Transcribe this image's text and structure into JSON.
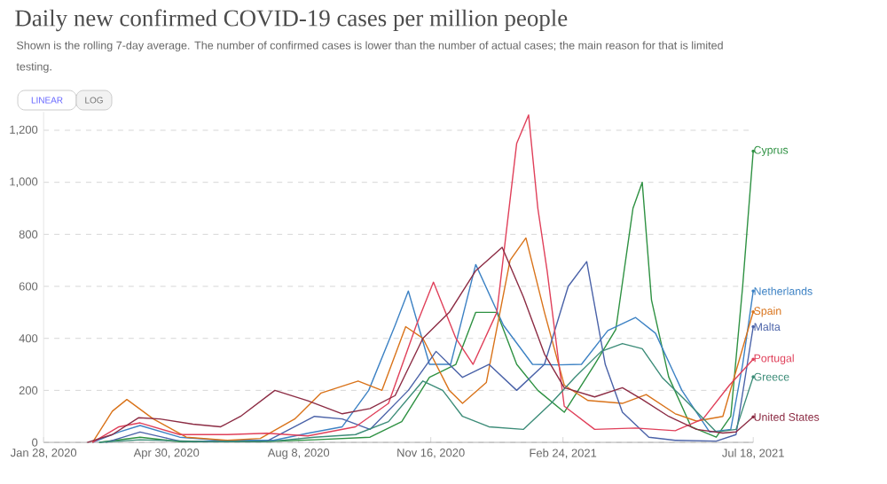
{
  "chart_data": {
    "type": "line",
    "title": "Daily new confirmed COVID-19 cases per million people",
    "subtitle": "Shown is the rolling 7-day average. The number of confirmed cases is lower than the number of actual cases; the main reason for that is limited testing.",
    "annotations": [
      "LINEAR",
      "LOG"
    ],
    "xlim": [
      "2020-01-28",
      "2021-07-18"
    ],
    "xticks": [
      {
        "value": "2020-01-28",
        "label": "Jan 28, 2020"
      },
      {
        "value": "2020-04-30",
        "label": "Apr 30, 2020"
      },
      {
        "value": "2020-08-08",
        "label": "Aug 8, 2020"
      },
      {
        "value": "2020-11-16",
        "label": "Nov 16, 2020"
      },
      {
        "value": "2021-02-24",
        "label": "Feb 24, 2021"
      },
      {
        "value": "2021-07-18",
        "label": "Jul 18, 2021"
      }
    ],
    "ylim": [
      0,
      1270
    ],
    "yticks": [
      0,
      200,
      400,
      600,
      800,
      {
        "value": 1000,
        "label": "1,000"
      },
      {
        "value": 1200,
        "label": "1,200"
      }
    ],
    "grid": "y",
    "legend": "right",
    "line_style": "solid",
    "series": [
      {
        "name": "Cyprus",
        "color": "#2e9142",
        "x": [
          "2020-03-10",
          "2020-04-10",
          "2020-05-10",
          "2020-07-10",
          "2020-08-20",
          "2020-10-01",
          "2020-10-25",
          "2020-11-15",
          "2020-12-05",
          "2020-12-20",
          "2021-01-05",
          "2021-01-20",
          "2021-02-05",
          "2021-02-25",
          "2021-03-20",
          "2021-04-05",
          "2021-04-18",
          "2021-04-25",
          "2021-05-02",
          "2021-05-15",
          "2021-06-01",
          "2021-06-20",
          "2021-07-01",
          "2021-07-10",
          "2021-07-18"
        ],
        "values": [
          0,
          20,
          3,
          3,
          10,
          20,
          80,
          250,
          300,
          500,
          500,
          300,
          200,
          116,
          300,
          434,
          900,
          1000,
          548,
          252,
          60,
          20,
          100,
          600,
          1120
        ]
      },
      {
        "name": "Netherlands",
        "color": "#3d82c4",
        "x": [
          "2020-03-05",
          "2020-03-25",
          "2020-04-10",
          "2020-05-10",
          "2020-06-10",
          "2020-07-20",
          "2020-08-15",
          "2020-09-10",
          "2020-09-30",
          "2020-10-20",
          "2020-10-30",
          "2020-11-15",
          "2020-12-01",
          "2020-12-20",
          "2021-01-10",
          "2021-02-01",
          "2021-02-20",
          "2021-03-10",
          "2021-03-30",
          "2021-04-20",
          "2021-05-05",
          "2021-05-25",
          "2021-06-15",
          "2021-07-01",
          "2021-07-10",
          "2021-07-18"
        ],
        "values": [
          0,
          40,
          65,
          20,
          8,
          8,
          35,
          60,
          200,
          450,
          582,
          300,
          300,
          684,
          450,
          300,
          298,
          300,
          430,
          480,
          420,
          200,
          40,
          50,
          300,
          582
        ]
      },
      {
        "name": "Spain",
        "color": "#d9731a",
        "x": [
          "2020-03-05",
          "2020-03-20",
          "2020-03-31",
          "2020-04-20",
          "2020-05-15",
          "2020-06-15",
          "2020-07-10",
          "2020-08-05",
          "2020-08-25",
          "2020-09-22",
          "2020-10-10",
          "2020-10-28",
          "2020-11-10",
          "2020-11-30",
          "2020-12-10",
          "2020-12-28",
          "2021-01-15",
          "2021-01-27",
          "2021-02-10",
          "2021-02-25",
          "2021-03-15",
          "2021-04-10",
          "2021-04-28",
          "2021-05-20",
          "2021-06-05",
          "2021-06-25",
          "2021-07-18"
        ],
        "values": [
          0,
          120,
          165,
          90,
          20,
          8,
          15,
          90,
          190,
          236,
          200,
          445,
          400,
          200,
          150,
          230,
          700,
          786,
          500,
          220,
          161,
          150,
          184,
          110,
          82,
          100,
          502
        ]
      },
      {
        "name": "Malta",
        "color": "#4a62a8",
        "x": [
          "2020-03-15",
          "2020-04-10",
          "2020-05-10",
          "2020-07-15",
          "2020-08-20",
          "2020-09-10",
          "2020-10-01",
          "2020-10-30",
          "2020-11-20",
          "2020-12-10",
          "2020-12-30",
          "2021-01-20",
          "2021-02-10",
          "2021-02-28",
          "2021-03-14",
          "2021-03-28",
          "2021-04-10",
          "2021-04-30",
          "2021-05-20",
          "2021-06-20",
          "2021-07-05",
          "2021-07-18"
        ],
        "values": [
          0,
          40,
          5,
          5,
          100,
          90,
          50,
          200,
          350,
          250,
          300,
          200,
          300,
          600,
          695,
          300,
          116,
          20,
          8,
          5,
          30,
          445
        ]
      },
      {
        "name": "Portugal",
        "color": "#e0405a",
        "x": [
          "2020-03-05",
          "2020-03-25",
          "2020-04-10",
          "2020-05-10",
          "2020-06-15",
          "2020-07-15",
          "2020-08-15",
          "2020-09-20",
          "2020-10-15",
          "2020-11-05",
          "2020-11-18",
          "2020-12-05",
          "2020-12-18",
          "2021-01-05",
          "2021-01-20",
          "2021-01-29",
          "2021-02-05",
          "2021-02-12",
          "2021-02-25",
          "2021-03-20",
          "2021-04-20",
          "2021-05-20",
          "2021-06-10",
          "2021-06-30",
          "2021-07-18"
        ],
        "values": [
          0,
          60,
          75,
          30,
          30,
          35,
          25,
          60,
          150,
          450,
          616,
          400,
          300,
          500,
          1150,
          1259,
          900,
          661,
          139,
          50,
          55,
          45,
          90,
          220,
          320
        ]
      },
      {
        "name": "Greece",
        "color": "#3c8c78",
        "x": [
          "2020-03-10",
          "2020-04-10",
          "2020-06-01",
          "2020-07-20",
          "2020-08-20",
          "2020-09-20",
          "2020-10-15",
          "2020-11-10",
          "2020-11-25",
          "2020-12-10",
          "2020-12-30",
          "2021-01-25",
          "2021-02-15",
          "2021-03-05",
          "2021-03-25",
          "2021-04-10",
          "2021-04-25",
          "2021-05-10",
          "2021-05-30",
          "2021-06-20",
          "2021-07-05",
          "2021-07-18"
        ],
        "values": [
          0,
          10,
          3,
          5,
          20,
          30,
          80,
          236,
          200,
          100,
          60,
          50,
          150,
          250,
          350,
          380,
          360,
          250,
          150,
          40,
          50,
          252
        ]
      },
      {
        "name": "United States",
        "color": "#8c2c44",
        "x": [
          "2020-03-01",
          "2020-03-20",
          "2020-04-09",
          "2020-04-25",
          "2020-05-20",
          "2020-06-10",
          "2020-06-25",
          "2020-07-21",
          "2020-08-15",
          "2020-09-10",
          "2020-10-01",
          "2020-10-20",
          "2020-11-10",
          "2020-11-30",
          "2020-12-20",
          "2021-01-09",
          "2021-01-25",
          "2021-02-10",
          "2021-02-25",
          "2021-03-20",
          "2021-04-10",
          "2021-04-25",
          "2021-05-15",
          "2021-06-05",
          "2021-06-25",
          "2021-07-05",
          "2021-07-18"
        ],
        "values": [
          0,
          30,
          95,
          90,
          70,
          60,
          100,
          200,
          160,
          110,
          130,
          180,
          400,
          500,
          660,
          750,
          560,
          340,
          210,
          175,
          210,
          165,
          100,
          50,
          36,
          40,
          98
        ]
      }
    ]
  }
}
